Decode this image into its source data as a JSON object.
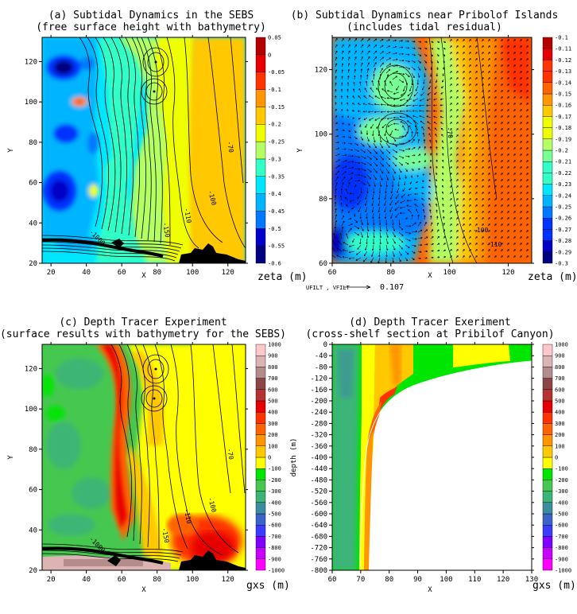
{
  "colors": {
    "eta": [
      "#000080",
      "#0000c8",
      "#0032ff",
      "#0078ff",
      "#00b4ff",
      "#00e6ff",
      "#32ffc8",
      "#78ff96",
      "#b4ff64",
      "#f0ff00",
      "#ffc800",
      "#ff9600",
      "#ff6400",
      "#ff3200",
      "#e60000",
      "#b40000"
    ],
    "tracer": [
      "#ff00ff",
      "#c800ff",
      "#8000ff",
      "#3c3cff",
      "#3c64c8",
      "#3c8ca0",
      "#3cb478",
      "#46c850",
      "#00e600",
      "#ffff00",
      "#ffc800",
      "#ff9600",
      "#ff6400",
      "#ff3200",
      "#e60000",
      "#b43232",
      "#8c4646",
      "#b48c8c",
      "#dcb4b4",
      "#ffc8c8"
    ]
  },
  "chart_data": [
    {
      "type": "heatmap",
      "title": "(a) Subtidal Dynamics in the SEBS",
      "subtitle": "(free surface height with bathymetry)",
      "xlabel": "X",
      "ylabel": "Y",
      "xlim": [
        15,
        130
      ],
      "ylim": [
        20,
        132
      ],
      "xticks": [
        20,
        40,
        60,
        80,
        100,
        120
      ],
      "yticks": [
        20,
        40,
        60,
        80,
        100,
        120
      ],
      "colorbar": {
        "unit": "zeta (m)",
        "levels": [
          "-0.6",
          "-0.55",
          "-0.5",
          "-0.45",
          "-0.4",
          "-0.35",
          "-0.3",
          "-0.25",
          "-0.2",
          "-0.15",
          "-0.1",
          "-0.05",
          "0",
          "0.05"
        ]
      },
      "contour_labels": [
        "-70",
        "-100",
        "-110",
        "-150",
        "-200",
        "-1000"
      ],
      "features": {
        "bathymetry_contours": true,
        "land_mask": true
      }
    },
    {
      "type": "heatmap",
      "title": "(b) Subtidal Dynamics near Pribolof Islands",
      "subtitle": "(includes tidal residual)",
      "xlabel": "X",
      "ylabel": "Y",
      "xlim": [
        60,
        128
      ],
      "ylim": [
        60,
        130
      ],
      "xticks": [
        60,
        80,
        100,
        120
      ],
      "yticks": [
        60,
        80,
        100,
        120
      ],
      "colorbar": {
        "unit": "zeta (m)",
        "levels": [
          "-0.3",
          "-0.29",
          "-0.28",
          "-0.27",
          "-0.26",
          "-0.25",
          "-0.24",
          "-0.23",
          "-0.22",
          "-0.21",
          "-0.2",
          "-0.19",
          "-0.18",
          "-0.17",
          "-0.16",
          "-0.15",
          "-0.14",
          "-0.13",
          "-0.12",
          "-0.11",
          "-0.1"
        ]
      },
      "vector_reference": {
        "label": "UFILT , VFILT",
        "value": "0.107"
      },
      "contour_labels": [
        "-70",
        "-100",
        "-110"
      ],
      "features": {
        "velocity_vectors": true,
        "bathymetry_contours": true
      }
    },
    {
      "type": "heatmap",
      "title": "(c) Depth Tracer Experiment",
      "subtitle": "(surface results with bathymetry for the SEBS)",
      "xlabel": "X",
      "ylabel": "Y",
      "xlim": [
        15,
        130
      ],
      "ylim": [
        20,
        132
      ],
      "xticks": [
        20,
        40,
        60,
        80,
        100,
        120
      ],
      "yticks": [
        20,
        40,
        60,
        80,
        100,
        120
      ],
      "colorbar": {
        "unit": "gxs (m)",
        "levels": [
          "-1000",
          "-900",
          "-800",
          "-700",
          "-600",
          "-500",
          "-400",
          "-300",
          "-200",
          "-100",
          "0",
          "100",
          "200",
          "300",
          "400",
          "500",
          "600",
          "700",
          "800",
          "900",
          "1000"
        ]
      },
      "contour_labels": [
        "-70",
        "-100",
        "-110",
        "-150",
        "-1000"
      ],
      "features": {
        "bathymetry_contours": true,
        "land_mask": true
      }
    },
    {
      "type": "heatmap",
      "title": "(d) Depth Tracer Exeriment",
      "subtitle": "(cross-shelf section at Pribilof Canyon)",
      "xlabel": "X",
      "ylabel": "depth (m)",
      "xlim": [
        60,
        130
      ],
      "ylim": [
        -800,
        0
      ],
      "xticks": [
        60,
        70,
        80,
        90,
        100,
        110,
        120,
        130
      ],
      "yticks": [
        0,
        -40,
        -80,
        -120,
        -160,
        -200,
        -240,
        -280,
        -320,
        -360,
        -400,
        -440,
        -480,
        -520,
        -560,
        -600,
        -640,
        -680,
        -720,
        -760,
        -800
      ],
      "colorbar": {
        "unit": "gxs (m)",
        "levels": [
          "-1000",
          "-900",
          "-800",
          "-700",
          "-600",
          "-500",
          "-400",
          "-300",
          "-200",
          "-100",
          "0",
          "100",
          "200",
          "300",
          "400",
          "500",
          "600",
          "700",
          "800",
          "900",
          "1000"
        ]
      }
    }
  ]
}
